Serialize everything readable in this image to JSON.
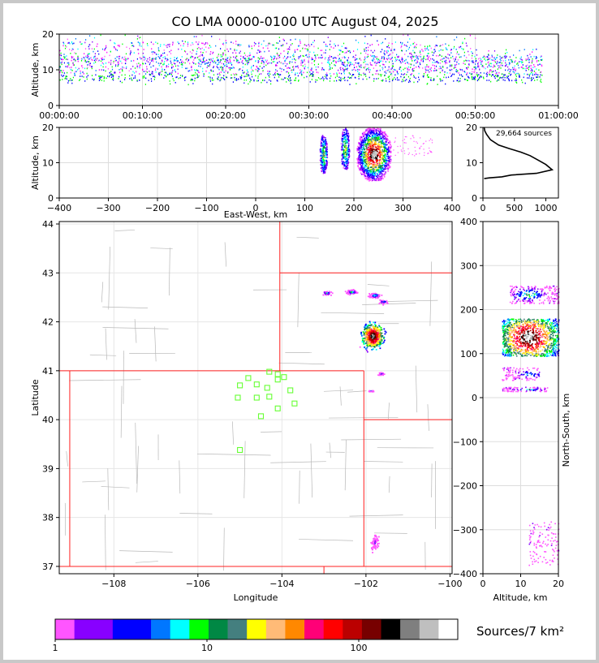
{
  "title": "CO LMA 0000-0100 UTC August 04, 2025",
  "time_height": {
    "ylabel": "Altitude, km",
    "yticks": [
      "0",
      "10",
      "20"
    ],
    "xticks": [
      "00:00:00",
      "00:10:00",
      "00:20:00",
      "00:30:00",
      "00:40:00",
      "00:50:00",
      "01:00:00"
    ]
  },
  "ew_alt": {
    "ylabel": "Altitude, km",
    "xlabel": "East-West, km",
    "xticks": [
      "−400",
      "−300",
      "−200",
      "−100",
      "0",
      "100",
      "200",
      "300",
      "400"
    ],
    "yticks": [
      "0",
      "10",
      "20"
    ]
  },
  "histogram": {
    "note": "29,664 sources",
    "xticks": [
      "0",
      "500",
      "1000"
    ],
    "yticks": [
      "0",
      "10",
      "20"
    ]
  },
  "plan": {
    "xlabel": "Longitude",
    "ylabel": "Latitude",
    "xticks": [
      "−108",
      "−106",
      "−104",
      "−102",
      "−100"
    ],
    "yticks": [
      "37",
      "38",
      "39",
      "40",
      "41",
      "42",
      "43",
      "44"
    ]
  },
  "ns_alt": {
    "xlabel": "Altitude, km",
    "ylabel": "North-South, km",
    "xticks": [
      "0",
      "10",
      "20"
    ],
    "yticks": [
      "−400",
      "−300",
      "−200",
      "−100",
      "0",
      "100",
      "200",
      "300",
      "400"
    ]
  },
  "colorbar": {
    "label": "Sources/7 km²",
    "ticks": [
      "1",
      "10",
      "100"
    ],
    "colors": [
      "#ff55ff",
      "#8800ff",
      "#8800ff",
      "#0000ff",
      "#0000ff",
      "#0077ff",
      "#00ffff",
      "#00ff00",
      "#008844",
      "#447f7f",
      "#ffff00",
      "#ffbb77",
      "#ff8800",
      "#ff0077",
      "#ff0000",
      "#bb0000",
      "#770000",
      "#000000",
      "#7f7f7f",
      "#bfbfbf",
      "#ffffff"
    ]
  },
  "chart_data": [
    {
      "type": "heatmap",
      "title": "CO LMA 0000-0100 UTC August 04, 2025",
      "xlabel": "",
      "ylabel": "Altitude, km",
      "xlim": [
        "00:00:00",
        "01:00:00"
      ],
      "ylim": [
        0,
        20
      ],
      "grid": true
    },
    {
      "type": "heatmap",
      "xlabel": "East-West, km",
      "ylabel": "Altitude, km",
      "xlim": [
        -400,
        400
      ],
      "ylim": [
        0,
        20
      ],
      "grid": true,
      "clusters": [
        {
          "x": [
            130,
            145
          ],
          "y": [
            7,
            18
          ]
        },
        {
          "x": [
            173,
            190
          ],
          "y": [
            8,
            20
          ]
        },
        {
          "x": [
            205,
            275
          ],
          "y": [
            5,
            20
          ]
        }
      ]
    },
    {
      "type": "line",
      "annotation": "29,664 sources",
      "xlim": [
        0,
        1200
      ],
      "ylim": [
        0,
        20
      ],
      "x": [
        20,
        30,
        60,
        120,
        250,
        420,
        600,
        750,
        900,
        1000,
        1100,
        850,
        450,
        300,
        100,
        20
      ],
      "y": [
        20,
        19,
        18,
        16.5,
        15,
        14,
        13,
        12,
        10.5,
        9.5,
        8,
        7,
        6.5,
        6,
        5.7,
        5.5
      ]
    },
    {
      "type": "scatter",
      "xlabel": "Longitude",
      "ylabel": "Latitude",
      "xlim": [
        -109.3,
        -99.95
      ],
      "ylim": [
        36.85,
        44.05
      ],
      "grid": true,
      "stations": [
        [
          -104.8,
          40.85
        ],
        [
          -104.6,
          40.72
        ],
        [
          -104.35,
          40.65
        ],
        [
          -104.1,
          40.82
        ],
        [
          -103.95,
          40.87
        ],
        [
          -105.0,
          40.7
        ],
        [
          -104.1,
          40.93
        ],
        [
          -104.3,
          40.47
        ],
        [
          -105.05,
          40.45
        ],
        [
          -104.6,
          40.45
        ],
        [
          -103.8,
          40.6
        ],
        [
          -103.7,
          40.33
        ],
        [
          -104.1,
          40.23
        ],
        [
          -104.5,
          40.07
        ],
        [
          -105.0,
          39.38
        ],
        [
          -104.3,
          40.98
        ]
      ]
    },
    {
      "type": "heatmap",
      "xlabel": "Altitude, km",
      "ylabel": "North-South, km",
      "xlim": [
        0,
        20
      ],
      "ylim": [
        -400,
        400
      ],
      "grid": true
    }
  ]
}
